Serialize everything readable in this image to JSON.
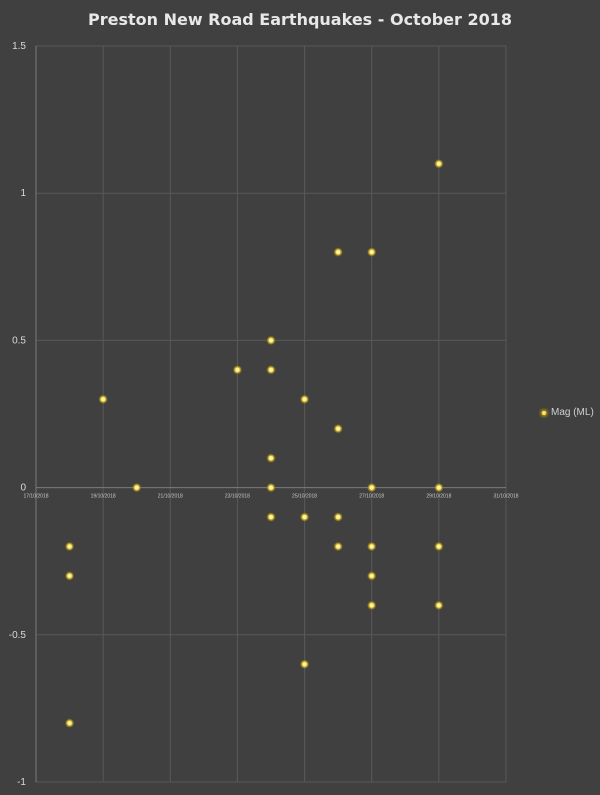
{
  "chart_data": {
    "type": "scatter",
    "title": "Preston New Road Earthquakes - October 2018",
    "xlabel": "",
    "ylabel": "",
    "x_tick_labels": [
      "17/10/2018",
      "19/10/2018",
      "21/10/2018",
      "23/10/2018",
      "25/10/2018",
      "27/10/2018",
      "29/10/2018",
      "31/10/2018"
    ],
    "x_tick_values": [
      "2018-10-17",
      "2018-10-19",
      "2018-10-21",
      "2018-10-23",
      "2018-10-25",
      "2018-10-27",
      "2018-10-29",
      "2018-10-31"
    ],
    "xlim": [
      "2018-10-17",
      "2018-10-31"
    ],
    "y_tick_labels": [
      "1.5",
      "1",
      "0.5",
      "0",
      "-0.5",
      "-1"
    ],
    "y_tick_values": [
      1.5,
      1,
      0.5,
      0,
      -0.5,
      -1
    ],
    "ylim": [
      -1,
      1.5
    ],
    "grid": true,
    "legend": "right",
    "series": [
      {
        "name": "Mag (ML)",
        "color": "#ffe45c",
        "points": [
          {
            "x": "2018-10-18",
            "y": -0.2
          },
          {
            "x": "2018-10-18",
            "y": -0.3
          },
          {
            "x": "2018-10-18",
            "y": -0.8
          },
          {
            "x": "2018-10-19",
            "y": 0.3
          },
          {
            "x": "2018-10-20",
            "y": 0.0
          },
          {
            "x": "2018-10-23",
            "y": 0.4
          },
          {
            "x": "2018-10-24",
            "y": 0.5
          },
          {
            "x": "2018-10-24",
            "y": 0.4
          },
          {
            "x": "2018-10-24",
            "y": 0.1
          },
          {
            "x": "2018-10-24",
            "y": 0.0
          },
          {
            "x": "2018-10-24",
            "y": -0.1
          },
          {
            "x": "2018-10-25",
            "y": 0.3
          },
          {
            "x": "2018-10-25",
            "y": -0.1
          },
          {
            "x": "2018-10-25",
            "y": -0.6
          },
          {
            "x": "2018-10-26",
            "y": 0.8
          },
          {
            "x": "2018-10-26",
            "y": 0.2
          },
          {
            "x": "2018-10-26",
            "y": -0.1
          },
          {
            "x": "2018-10-26",
            "y": -0.2
          },
          {
            "x": "2018-10-27",
            "y": 0.8
          },
          {
            "x": "2018-10-27",
            "y": 0.0
          },
          {
            "x": "2018-10-27",
            "y": -0.2
          },
          {
            "x": "2018-10-27",
            "y": -0.3
          },
          {
            "x": "2018-10-27",
            "y": -0.4
          },
          {
            "x": "2018-10-29",
            "y": 1.1
          },
          {
            "x": "2018-10-29",
            "y": 0.0
          },
          {
            "x": "2018-10-29",
            "y": -0.2
          },
          {
            "x": "2018-10-29",
            "y": -0.4
          }
        ]
      }
    ]
  }
}
